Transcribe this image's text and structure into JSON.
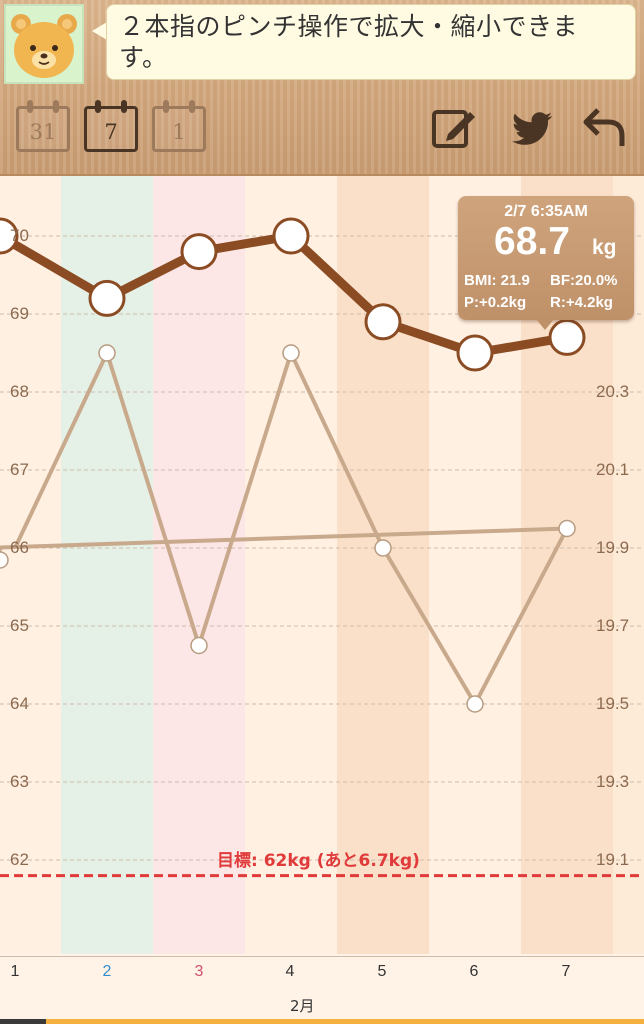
{
  "header": {
    "message": "２本指のピンチ操作で拡大・縮小できます。",
    "range_buttons": [
      {
        "label": "31",
        "active": false
      },
      {
        "label": "7",
        "active": true
      },
      {
        "label": "1",
        "active": false
      }
    ]
  },
  "tooltip": {
    "time": "2/7 6:35AM",
    "weight": "68.7",
    "unit": "kg",
    "bmi": "BMI: 21.9",
    "bf": "BF:20.0%",
    "p": "P:+0.2kg",
    "r": "R:+4.2kg"
  },
  "goal": {
    "label": "目標: 62kg (あと6.7kg)",
    "color": "#e03a3a"
  },
  "axis": {
    "month": "2月",
    "left_ticks": [
      "70",
      "69",
      "68",
      "67",
      "66",
      "65",
      "64",
      "63",
      "62"
    ],
    "right_ticks": [
      "20.3",
      "20.1",
      "19.9",
      "19.7",
      "19.5",
      "19.3",
      "19.1"
    ]
  },
  "colors": {
    "weight_line": "#8b4c24",
    "bf_line": "#c9a98c",
    "today_col": "#fbe0c9",
    "weekday_col": "#fff0e2",
    "sun_col": "#e5f1e6",
    "sat_col": "#fde6e6"
  },
  "chart_data": {
    "type": "line",
    "x": [
      "1",
      "2",
      "3",
      "4",
      "5",
      "6",
      "7"
    ],
    "x_colors": [
      "#333333",
      "#2f8fd0",
      "#d05070",
      "#333333",
      "#333333",
      "#333333",
      "#333333"
    ],
    "series": [
      {
        "values": [
          70.0,
          69.2,
          69.8,
          70.0,
          68.9,
          68.5,
          68.7
        ]
      },
      {
        "values": [
          19.9,
          20.4,
          19.65,
          20.4,
          19.9,
          19.5,
          19.95
        ]
      }
    ],
    "ylim_left": [
      61.8,
      70.3
    ],
    "ylim_right": [
      19.0,
      20.8
    ],
    "goal_y": 61.8
  }
}
